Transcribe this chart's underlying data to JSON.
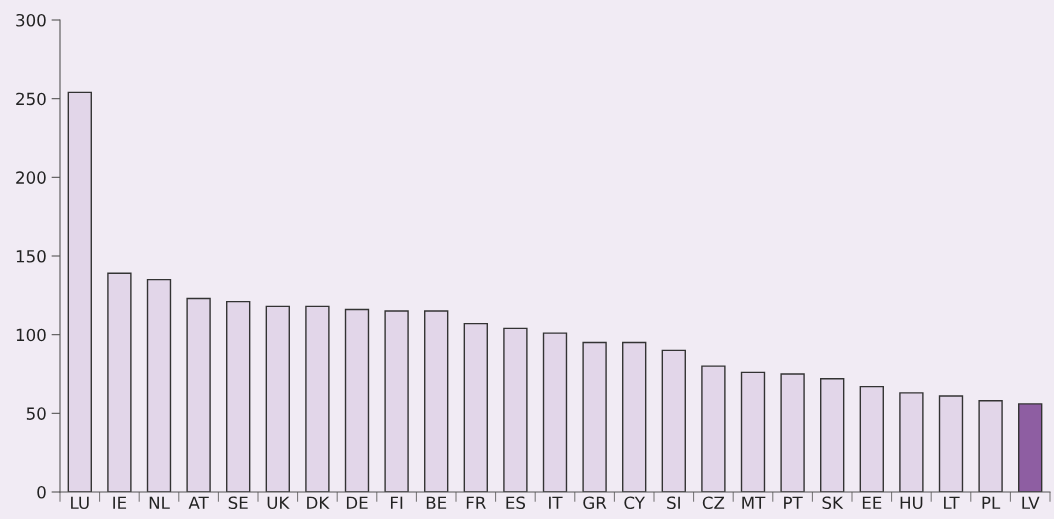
{
  "chart_data": {
    "type": "bar",
    "categories": [
      "LU",
      "IE",
      "NL",
      "AT",
      "SE",
      "UK",
      "DK",
      "DE",
      "FI",
      "BE",
      "FR",
      "ES",
      "IT",
      "GR",
      "CY",
      "SI",
      "CZ",
      "MT",
      "PT",
      "SK",
      "EE",
      "HU",
      "LT",
      "PL",
      "LV"
    ],
    "values": [
      254,
      139,
      135,
      123,
      121,
      118,
      118,
      116,
      115,
      115,
      107,
      104,
      101,
      95,
      95,
      90,
      80,
      76,
      75,
      72,
      67,
      63,
      61,
      58,
      56
    ],
    "colors": [
      "#e2d6e9",
      "#e2d6e9",
      "#e2d6e9",
      "#e2d6e9",
      "#e2d6e9",
      "#e2d6e9",
      "#e2d6e9",
      "#e2d6e9",
      "#e2d6e9",
      "#e2d6e9",
      "#e2d6e9",
      "#e2d6e9",
      "#e2d6e9",
      "#e2d6e9",
      "#e2d6e9",
      "#e2d6e9",
      "#e2d6e9",
      "#e2d6e9",
      "#e2d6e9",
      "#e2d6e9",
      "#e2d6e9",
      "#e2d6e9",
      "#e2d6e9",
      "#e2d6e9",
      "#8e5ea2"
    ],
    "ylim": [
      0,
      300
    ],
    "yticks": [
      0,
      50,
      100,
      150,
      200,
      250,
      300
    ],
    "grid": false,
    "legend": false
  }
}
